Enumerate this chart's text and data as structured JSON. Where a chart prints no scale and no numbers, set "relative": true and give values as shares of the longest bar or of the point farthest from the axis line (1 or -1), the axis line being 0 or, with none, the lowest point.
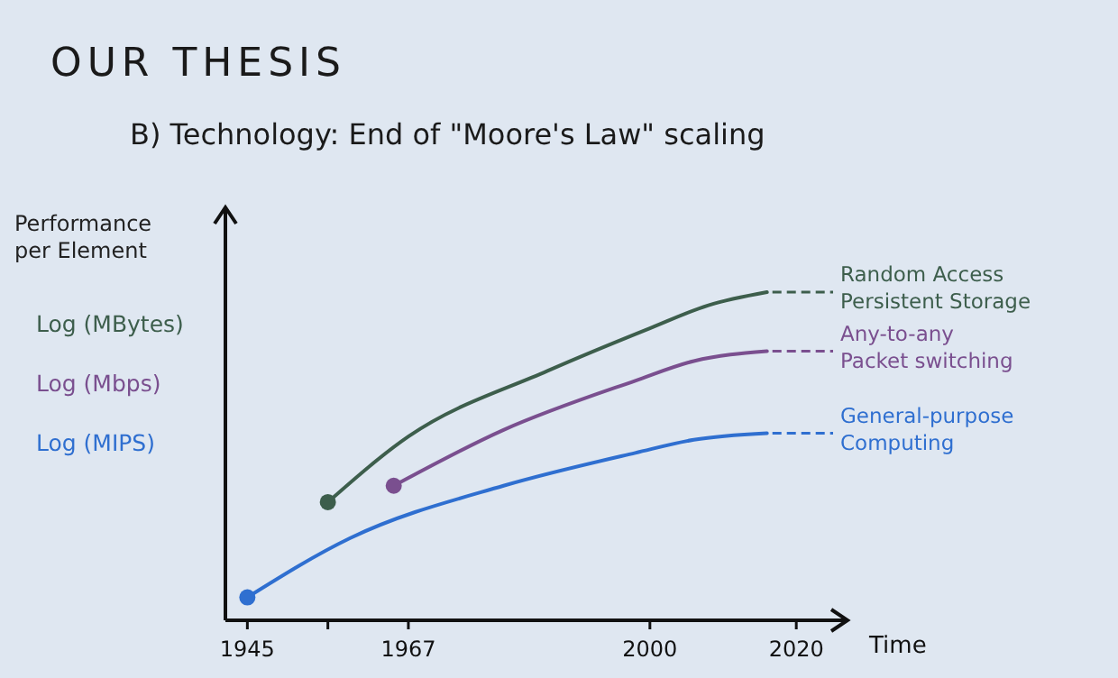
{
  "chart_data": {
    "type": "line",
    "title": "OUR THESIS",
    "subtitle": "B) Technology: End of \"Moore's Law\" scaling",
    "xlabel": "Time",
    "ylabel": "Performance per Element",
    "relative": true,
    "legend": "right",
    "xlim": [
      1942,
      2027
    ],
    "xticks": [
      1945,
      {
        "value": 1956,
        "label": null
      },
      1967,
      2000,
      2020
    ],
    "annotations": [
      "Log (MBytes)",
      "Log (Mbps)",
      "Log (MIPS)"
    ],
    "series": [
      {
        "name": "Random Access Persistent Storage",
        "color": "#3d5e4c",
        "x": [
          1956,
          1967,
          1986,
          2000,
          2008,
          2016
        ],
        "values": [
          0.36,
          0.56,
          0.76,
          0.89,
          0.96,
          1
        ]
      },
      {
        "name": "Any-to-any Packet switching",
        "color": "#7a4f8f",
        "x": [
          1965,
          1980,
          1998,
          2006,
          2016
        ],
        "values": [
          0.41,
          0.58,
          0.73,
          0.79,
          0.82
        ]
      },
      {
        "name": "General-purpose Computing",
        "color": "#2f6fd0",
        "x": [
          1945,
          1959,
          1980,
          1998,
          2006,
          2016
        ],
        "values": [
          0.07,
          0.25,
          0.41,
          0.51,
          0.55,
          0.57
        ]
      },
      {
        "type": "scatter",
        "x": [
          1956,
          1965,
          1945
        ],
        "values": [
          0.36,
          0.41,
          0.07
        ],
        "colors": [
          "#3d5e4c",
          "#7a4f8f",
          "#2f6fd0"
        ]
      }
    ]
  }
}
